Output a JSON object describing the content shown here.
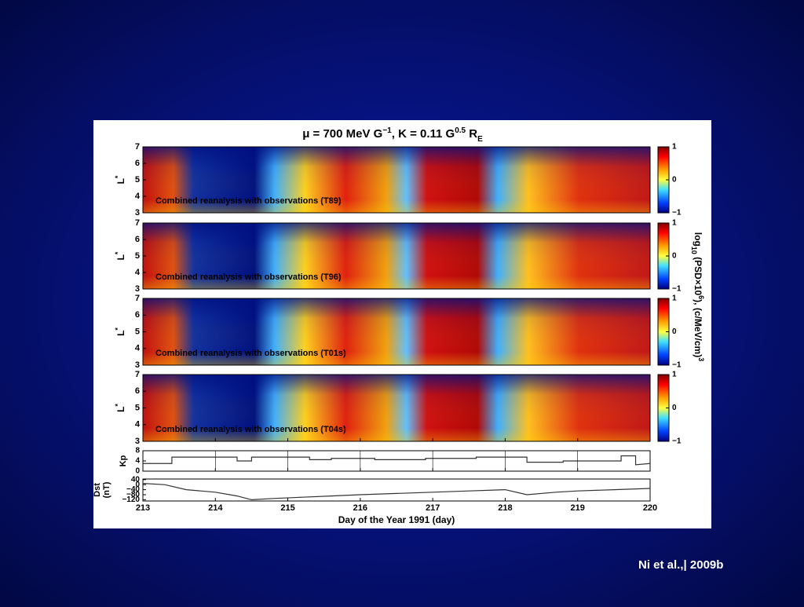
{
  "slide": {
    "citation": "Ni et al.,| 2009b"
  },
  "figure": {
    "title": {
      "a": "μ = 700 MeV G",
      "a_sup": "−1",
      "b": ", K = 0.11 G",
      "b_sup": "0.5",
      "c": " R",
      "c_sub": "E"
    },
    "panels": [
      {
        "label": "Combined reanalysis with observations (T89)"
      },
      {
        "label": "Combined reanalysis with observations (T96)"
      },
      {
        "label": "Combined reanalysis with observations (T01s)"
      },
      {
        "label": "Combined reanalysis with observations (T04s)"
      }
    ],
    "l_axis": {
      "label": "L",
      "label_sup": "*",
      "ylim": [
        3,
        7
      ],
      "yticks": [
        3,
        4,
        5,
        6,
        7
      ]
    },
    "colorbar": {
      "lim": [
        -1,
        1
      ],
      "ticks": [
        1,
        0,
        {
          "value": -1,
          "label": "−1"
        }
      ],
      "label": {
        "a": "log",
        "a_sub": "10",
        "b": " (PSD×10",
        "b_sup": "6",
        "c": "),  (c/MeV/cm)",
        "c_sup": "3"
      }
    },
    "kp": {
      "label": "Kp",
      "ylim": [
        0,
        8
      ],
      "yticks": [
        0,
        4,
        8
      ],
      "x": [
        213,
        213.4,
        213.4,
        214.3,
        214.3,
        214.5,
        214.5,
        215.3,
        215.3,
        215.6,
        215.6,
        216.2,
        216.2,
        216.9,
        216.9,
        217.6,
        217.6,
        218.3,
        218.3,
        218.8,
        218.8,
        219.6,
        219.6,
        219.8,
        219.8,
        220
      ],
      "values": [
        3,
        3,
        5.5,
        5.5,
        4,
        4,
        5.5,
        5.5,
        4.5,
        4.5,
        5,
        5,
        4.5,
        4.5,
        5,
        5,
        5.5,
        5.5,
        3.5,
        3.5,
        4,
        4,
        6,
        6,
        2.5,
        3
      ]
    },
    "dst": {
      "label": "Dst",
      "unit": "(nT)",
      "ylim": [
        -130,
        45
      ],
      "yticks": [
        40,
        0,
        {
          "value": -40,
          "label": "−40"
        },
        {
          "value": -80,
          "label": "−80"
        },
        {
          "value": -120,
          "label": "−120"
        }
      ],
      "x": [
        213,
        213.3,
        213.6,
        214,
        214.3,
        214.5,
        214.8,
        215.2,
        215.6,
        216,
        216.5,
        217,
        217.5,
        218,
        218.3,
        218.7,
        219,
        219.5,
        220
      ],
      "values": [
        10,
        0,
        -40,
        -60,
        -90,
        -120,
        -110,
        -100,
        -90,
        -80,
        -70,
        -60,
        -50,
        -40,
        -80,
        -60,
        -50,
        -40,
        -30
      ]
    },
    "xaxis": {
      "label": "Day of the Year 1991 (day)",
      "xlim": [
        213,
        220
      ],
      "xticks": [
        213,
        214,
        215,
        216,
        217,
        218,
        219,
        220
      ]
    }
  }
}
